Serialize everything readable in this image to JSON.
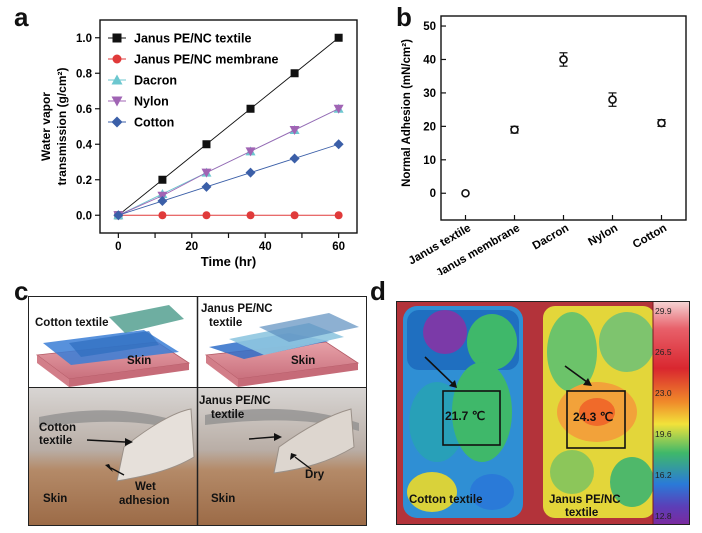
{
  "panels": {
    "a": "a",
    "b": "b",
    "c": "c",
    "d": "d"
  },
  "chart_data": [
    {
      "type": "line",
      "panel": "a",
      "xlabel": "Time (hr)",
      "ylabel_line1": "Water vapor",
      "ylabel_line2": "transmission (g/cm²)",
      "x": [
        0,
        12,
        24,
        36,
        48,
        60
      ],
      "xlim": [
        -5,
        65
      ],
      "ylim": [
        -0.1,
        1.1
      ],
      "xticks": [
        0,
        10,
        20,
        30,
        40,
        50,
        60
      ],
      "yticks": [
        "0.0",
        "0.2",
        "0.4",
        "0.6",
        "0.8",
        "1.0"
      ],
      "legend_position": "top-left",
      "series": [
        {
          "name": "Janus PE/NC  textile",
          "marker": "square",
          "color": "#111111",
          "values": [
            0,
            0.2,
            0.4,
            0.6,
            0.8,
            1.0
          ]
        },
        {
          "name": "Janus PE/NC membrane",
          "marker": "circle",
          "color": "#e03a3a",
          "values": [
            0,
            0,
            0,
            0,
            0,
            0
          ]
        },
        {
          "name": "Dacron",
          "marker": "triangle-up",
          "color": "#6cc7cf",
          "values": [
            0,
            0.12,
            0.24,
            0.36,
            0.48,
            0.6
          ]
        },
        {
          "name": "Nylon",
          "marker": "triangle-down",
          "color": "#a064b4",
          "values": [
            0,
            0.11,
            0.24,
            0.36,
            0.48,
            0.6
          ]
        },
        {
          "name": "Cotton",
          "marker": "diamond",
          "color": "#3b5fa8",
          "values": [
            0,
            0.08,
            0.16,
            0.24,
            0.32,
            0.4
          ]
        }
      ]
    },
    {
      "type": "scatter",
      "panel": "b",
      "ylabel": "Normal Adhesion (mN/cm²)",
      "categories": [
        "Janus textile",
        "Janus membrane",
        "Dacron",
        "Nylon",
        "Cotton"
      ],
      "values": [
        0,
        19,
        40,
        28,
        21
      ],
      "errors": [
        0.3,
        1,
        2,
        2,
        1
      ],
      "ylim": [
        -8,
        53
      ],
      "yticks": [
        "0",
        "10",
        "20",
        "30",
        "40",
        "50"
      ]
    }
  ],
  "panel_c": {
    "illus_left_title": "Cotton textile",
    "illus_left_skin": "Skin",
    "illus_right_title_1": "Janus PE/NC",
    "illus_right_title_2": "textile",
    "illus_right_skin": "Skin",
    "photo_left_label_1": "Cotton",
    "photo_left_label_2": "textile",
    "photo_left_skin": "Skin",
    "photo_left_wet_1": "Wet",
    "photo_left_wet_2": "adhesion",
    "photo_right_label_1": "Janus PE/NC",
    "photo_right_label_2": "textile",
    "photo_right_skin": "Skin",
    "photo_right_dry": "Dry"
  },
  "panel_d": {
    "left_temp": "21.7 ℃",
    "right_temp": "24.3 ℃",
    "left_label": "Cotton textile",
    "right_label_1": "Janus PE/NC",
    "right_label_2": "textile",
    "colorbar_ticks": [
      "29.9",
      "26.5",
      "23.0",
      "19.6",
      "16.2",
      "12.8"
    ]
  }
}
